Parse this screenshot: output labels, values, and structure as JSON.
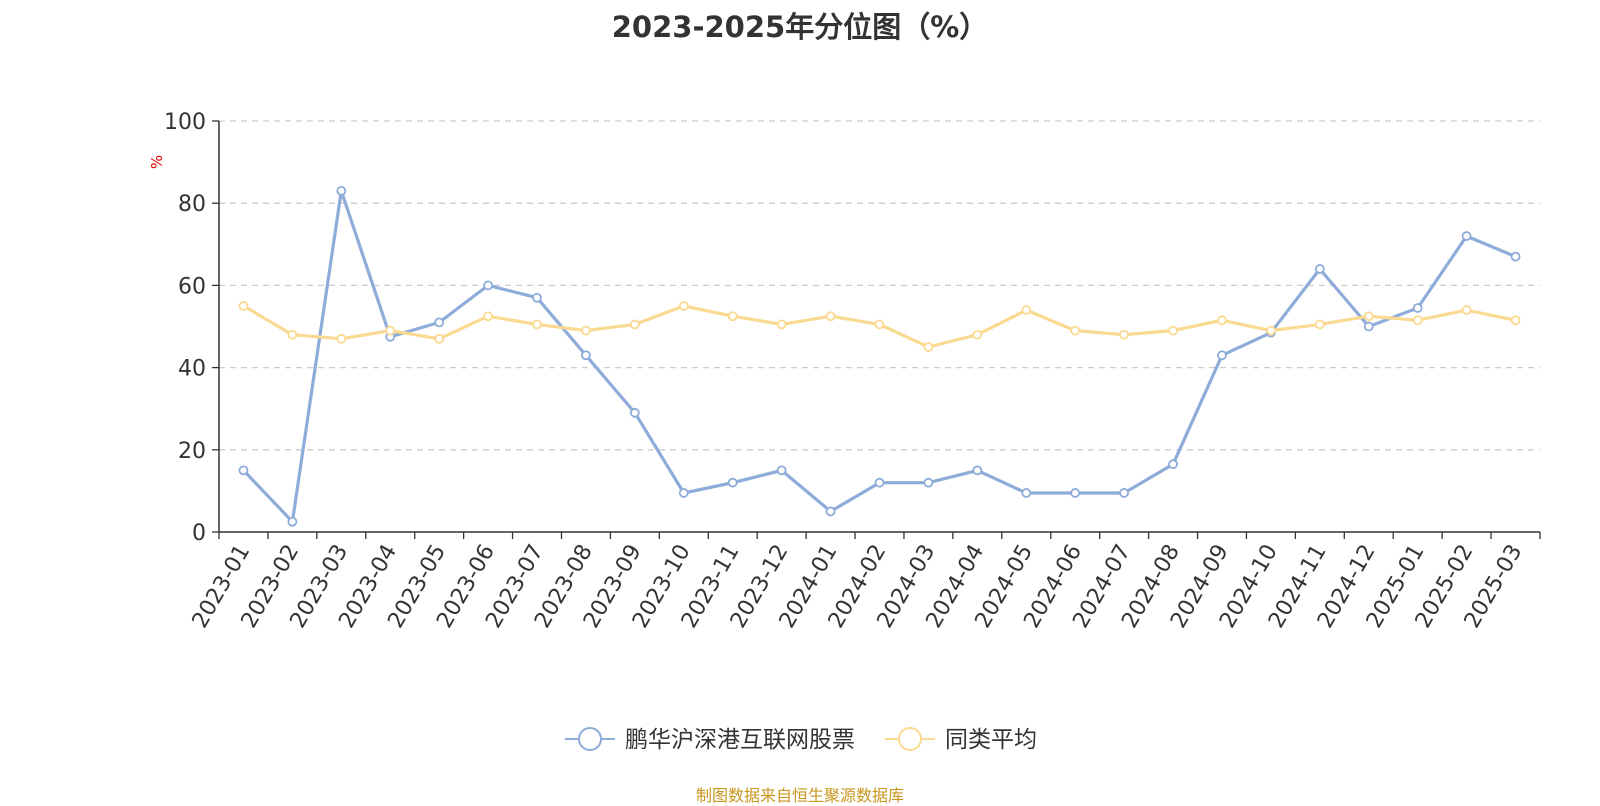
{
  "chart_data": {
    "type": "line",
    "title": "2023-2025年分位图（%）",
    "ylabel": "%",
    "xlabel": "",
    "ylim": [
      0,
      100
    ],
    "yticks": [
      0,
      20,
      40,
      60,
      80,
      100
    ],
    "grid": true,
    "legend_position": "bottom-center",
    "categories": [
      "2023-01",
      "2023-02",
      "2023-03",
      "2023-04",
      "2023-05",
      "2023-06",
      "2023-07",
      "2023-08",
      "2023-09",
      "2023-10",
      "2023-11",
      "2023-12",
      "2024-01",
      "2024-02",
      "2024-03",
      "2024-04",
      "2024-05",
      "2024-06",
      "2024-07",
      "2024-08",
      "2024-09",
      "2024-10",
      "2024-11",
      "2024-12",
      "2025-01",
      "2025-02",
      "2025-03"
    ],
    "series": [
      {
        "name": "鹏华沪深港互联网股票",
        "color": "#8eacd9",
        "values": [
          15,
          2.5,
          83,
          47.5,
          51,
          60,
          57,
          43,
          29,
          9.5,
          12,
          15,
          5,
          12,
          12,
          15,
          9.5,
          9.5,
          9.5,
          16.5,
          43,
          48.5,
          64,
          50,
          54.5,
          72,
          67
        ]
      },
      {
        "name": "同类平均",
        "color": "#fad991",
        "values": [
          55,
          48,
          47,
          49,
          47,
          52.5,
          50.5,
          49,
          50.5,
          55,
          52.5,
          50.5,
          52.5,
          50.5,
          45,
          48,
          54,
          49,
          48,
          49,
          51.5,
          49,
          50.5,
          52.5,
          51.5,
          54,
          51.5
        ]
      }
    ],
    "source": "制图数据来自恒生聚源数据库"
  }
}
